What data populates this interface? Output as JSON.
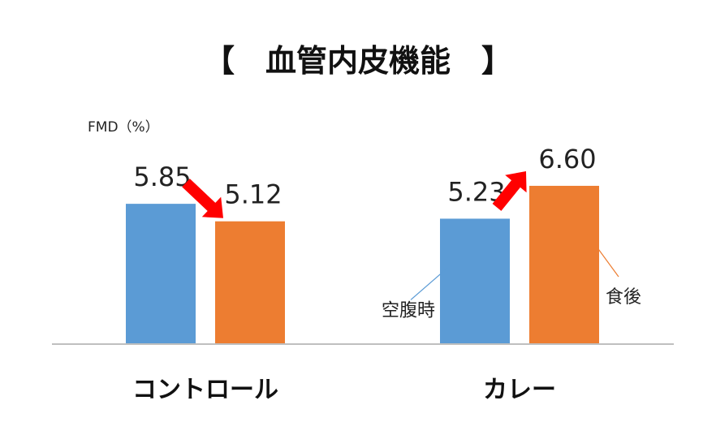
{
  "chart_data": {
    "type": "bar",
    "title": "【　血管内皮機能　】",
    "ylabel": "FMD（%）",
    "categories": [
      "コントロール",
      "カレー"
    ],
    "series": [
      {
        "name": "空腹時",
        "values": [
          5.85,
          5.23
        ],
        "color": "#5b9bd5"
      },
      {
        "name": "食後",
        "values": [
          5.12,
          6.6
        ],
        "color": "#ed7d31"
      }
    ],
    "ylim": [
      0,
      8
    ],
    "grid": false,
    "legend": "callout labels",
    "annotations": [
      {
        "type": "arrow",
        "direction": "down",
        "category": "コントロール",
        "color": "#ff0000"
      },
      {
        "type": "arrow",
        "direction": "up",
        "category": "カレー",
        "color": "#ff0000"
      }
    ]
  }
}
